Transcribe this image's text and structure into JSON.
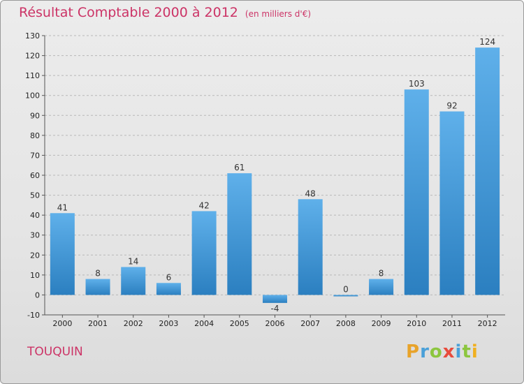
{
  "chart_data": {
    "type": "bar",
    "title": "Résultat Comptable 2000 à 2012",
    "subtitle": "(en milliers d'€)",
    "categories": [
      "2000",
      "2001",
      "2002",
      "2003",
      "2004",
      "2005",
      "2006",
      "2007",
      "2008",
      "2009",
      "2010",
      "2011",
      "2012"
    ],
    "values": [
      41,
      8,
      14,
      6,
      42,
      61,
      -4,
      48,
      0,
      8,
      103,
      92,
      124
    ],
    "ylim": [
      -10,
      130
    ],
    "yticks": [
      -10,
      0,
      10,
      20,
      30,
      40,
      50,
      60,
      70,
      80,
      90,
      100,
      110,
      120,
      130
    ],
    "grid": true,
    "xlabel": "",
    "ylabel": ""
  },
  "place": "TOUQUIN",
  "brand": {
    "letters": [
      "P",
      "r",
      "o",
      "x",
      "i",
      "t",
      "i"
    ],
    "colors": [
      "#e8a32a",
      "#4aa0d8",
      "#8cc63f",
      "#e84b3c",
      "#4aa0d8",
      "#8cc63f",
      "#f0b020"
    ]
  },
  "colors": {
    "title": "#cc3366",
    "bar_light": "#5fb0ea",
    "bar_dark": "#2b7fc0",
    "grid": "#b8b8b8"
  }
}
